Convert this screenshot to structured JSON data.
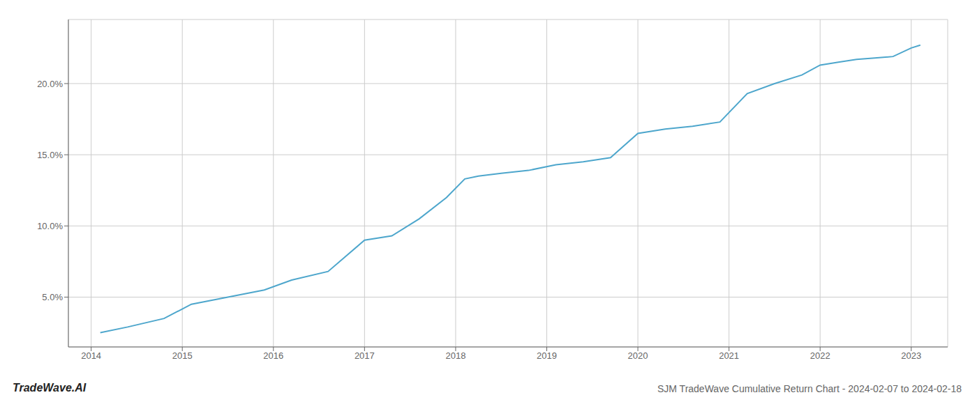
{
  "chart_data": {
    "type": "line",
    "title": "SJM TradeWave Cumulative Return Chart - 2024-02-07 to 2024-02-18",
    "annotations": [
      "TradeWave.AI"
    ],
    "x": [
      2014.1,
      2014.4,
      2014.8,
      2015.1,
      2015.5,
      2015.9,
      2016.2,
      2016.6,
      2017.0,
      2017.3,
      2017.6,
      2017.9,
      2018.1,
      2018.25,
      2018.5,
      2018.8,
      2019.1,
      2019.4,
      2019.7,
      2020.0,
      2020.3,
      2020.6,
      2020.9,
      2021.2,
      2021.5,
      2021.8,
      2022.0,
      2022.2,
      2022.4,
      2022.6,
      2022.8,
      2023.0,
      2023.1
    ],
    "values": [
      2.5,
      2.9,
      3.5,
      4.5,
      5.0,
      5.5,
      6.2,
      6.8,
      9.0,
      9.3,
      10.5,
      12.0,
      13.3,
      13.5,
      13.7,
      13.9,
      14.3,
      14.5,
      14.8,
      16.5,
      16.8,
      17.0,
      17.3,
      19.3,
      20.0,
      20.6,
      21.3,
      21.5,
      21.7,
      21.8,
      21.9,
      22.5,
      22.7
    ],
    "color": "#4da6cc",
    "xlim": [
      2013.75,
      2023.4
    ],
    "xticks": [
      2014,
      2015,
      2016,
      2017,
      2018,
      2019,
      2020,
      2021,
      2022,
      2023
    ],
    "ylim": [
      1.5,
      24.5
    ],
    "yticks": [
      {
        "value": 5.0,
        "label": "5.0%"
      },
      {
        "value": 10.0,
        "label": "10.0%"
      },
      {
        "value": 15.0,
        "label": "15.0%"
      },
      {
        "value": 20.0,
        "label": "20.0%"
      }
    ],
    "grid": true
  }
}
